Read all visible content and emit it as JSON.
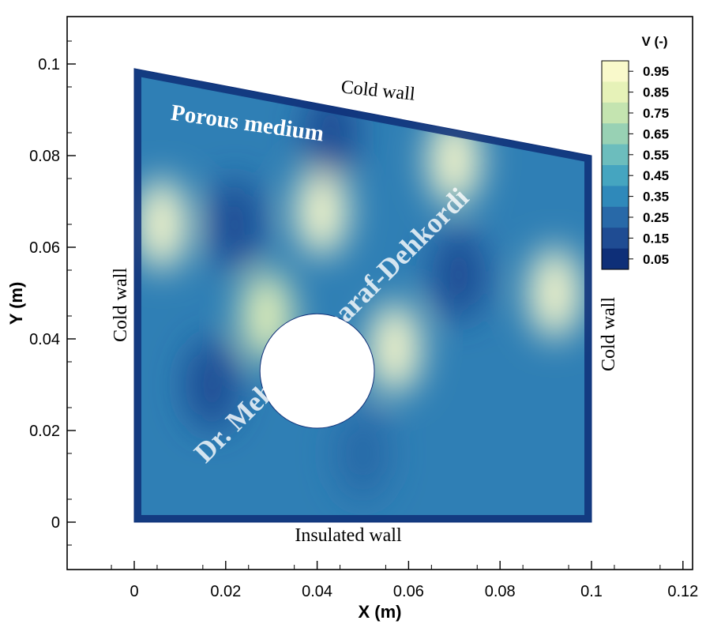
{
  "chart_data": {
    "type": "heatmap",
    "title": "",
    "xlabel": "X (m)",
    "ylabel": "Y (m)",
    "xlim": [
      -0.015,
      0.12
    ],
    "ylim": [
      -0.011,
      0.111
    ],
    "x_ticks": [
      "0",
      "0.02",
      "0.04",
      "0.06",
      "0.08",
      "0.1",
      "0.12"
    ],
    "y_ticks": [
      "0",
      "0.02",
      "0.04",
      "0.06",
      "0.08",
      "0.1"
    ],
    "domain_outline": [
      [
        0,
        0
      ],
      [
        0.1,
        0
      ],
      [
        0.1,
        0.08
      ],
      [
        0,
        0.099
      ]
    ],
    "obstacle": {
      "shape": "circle",
      "cx": 0.04,
      "cy": 0.033,
      "r": 0.0125
    },
    "legend": {
      "title": "V (-)",
      "levels": [
        "0.95",
        "0.85",
        "0.75",
        "0.65",
        "0.55",
        "0.45",
        "0.35",
        "0.25",
        "0.15",
        "0.05"
      ],
      "colors": [
        "#f9f9cb",
        "#e6f2b8",
        "#c4e4b0",
        "#98d1b4",
        "#6cbdbd",
        "#45a5c0",
        "#2f89ba",
        "#2869a8",
        "#1f4c93",
        "#0e2f78"
      ]
    },
    "field_peaks": [
      {
        "x": 0.006,
        "y": 0.065,
        "v": 0.95
      },
      {
        "x": 0.022,
        "y": 0.065,
        "v": 0.1
      },
      {
        "x": 0.041,
        "y": 0.068,
        "v": 0.95
      },
      {
        "x": 0.057,
        "y": 0.038,
        "v": 0.95
      },
      {
        "x": 0.071,
        "y": 0.054,
        "v": 0.1
      },
      {
        "x": 0.092,
        "y": 0.05,
        "v": 0.9
      },
      {
        "x": 0.07,
        "y": 0.079,
        "v": 0.9
      },
      {
        "x": 0.029,
        "y": 0.045,
        "v": 0.8
      },
      {
        "x": 0.017,
        "y": 0.03,
        "v": 0.1
      },
      {
        "x": 0.043,
        "y": 0.085,
        "v": 0.15
      },
      {
        "x": 0.05,
        "y": 0.015,
        "v": 0.2
      }
    ],
    "annotations": {
      "top": "Cold wall",
      "left": "Cold wall",
      "right": "Cold wall",
      "bottom": "Insulated wall",
      "region": "Porous medium",
      "watermark": "Dr. Mehdi Mosharaf-Dehkordi"
    }
  }
}
